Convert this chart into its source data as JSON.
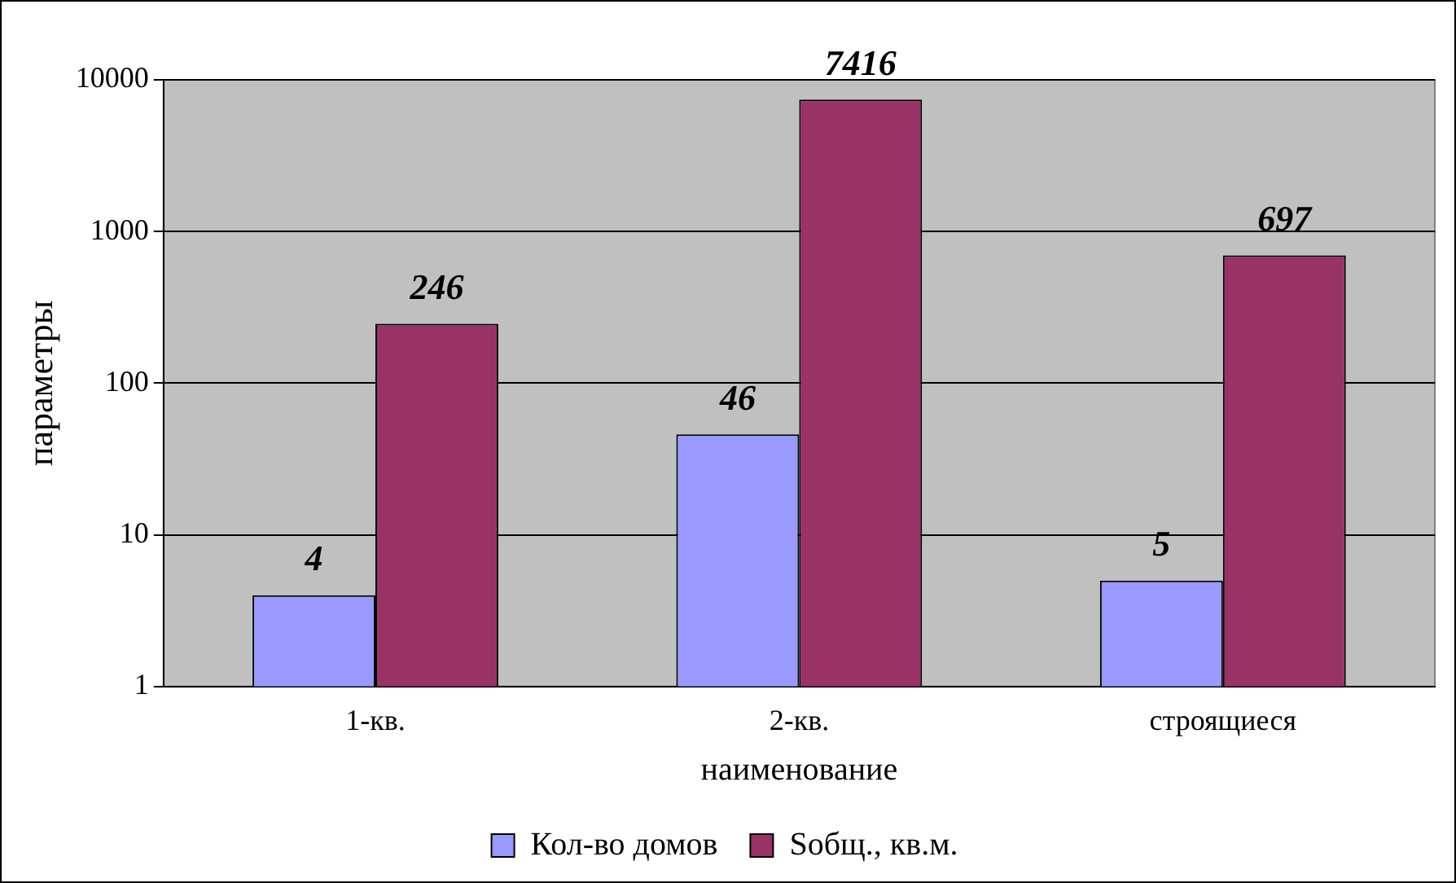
{
  "chart_data": {
    "type": "bar",
    "xlabel": "наименование",
    "ylabel": "параметры",
    "categories": [
      "1-кв.",
      "2-кв.",
      "строящиеся"
    ],
    "series": [
      {
        "name": "Кол-во домов",
        "color": "#9999ff",
        "values": [
          4,
          46,
          5
        ]
      },
      {
        "name": "Sобщ., кв.м.",
        "color": "#993366",
        "values": [
          246,
          7416,
          697
        ]
      }
    ],
    "log": "y",
    "ylim": [
      1,
      10000
    ],
    "yticks": [
      1,
      10,
      100,
      1000,
      10000
    ],
    "grid": "y",
    "legend": "bottom",
    "data_labels": true
  }
}
